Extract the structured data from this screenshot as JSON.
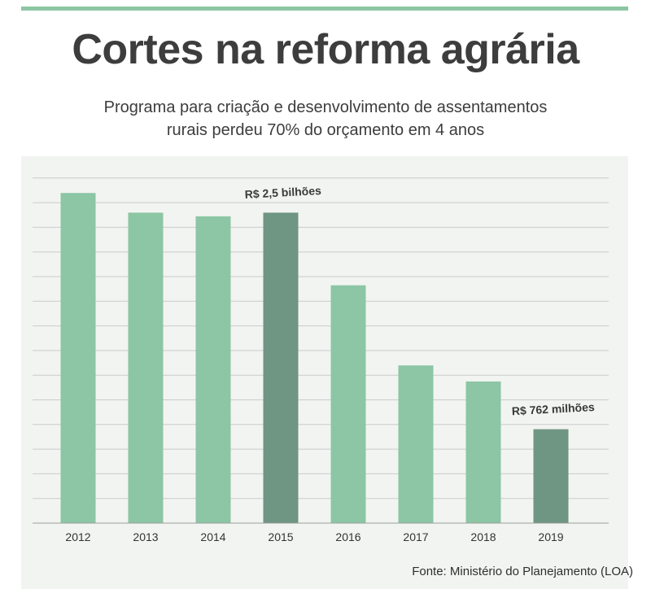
{
  "header": {
    "title": "Cortes na reforma agrária",
    "subtitle_line1": "Programa para criação e desenvolvimento de assentamentos",
    "subtitle_line2": "rurais perdeu 70% do orçamento em 4 anos"
  },
  "footer": {
    "source": "Fonte: Ministério do Planejamento (LOA)"
  },
  "colors": {
    "accent": "#8cc6a4",
    "bar": "#8cc6a4",
    "highlight": "#6f9583",
    "grid": "#c9ccca",
    "panel": "#f2f4f2",
    "text": "#3d3d3d"
  },
  "chart_data": {
    "type": "bar",
    "title": "",
    "xlabel": "",
    "ylabel": "",
    "grid": true,
    "categories": [
      "2012",
      "2013",
      "2014",
      "2015",
      "2016",
      "2017",
      "2018",
      "2019"
    ],
    "values": [
      2.68,
      2.52,
      2.49,
      2.52,
      1.93,
      1.28,
      1.15,
      0.762
    ],
    "value_unit": "R$ bilhões",
    "ylim": [
      0,
      2.8
    ],
    "highlighted": [
      "2015",
      "2019"
    ],
    "annotations": [
      {
        "category": "2015",
        "text": "R$ 2,5 bilhões"
      },
      {
        "category": "2019",
        "text": "R$ 762 milhões"
      }
    ]
  }
}
